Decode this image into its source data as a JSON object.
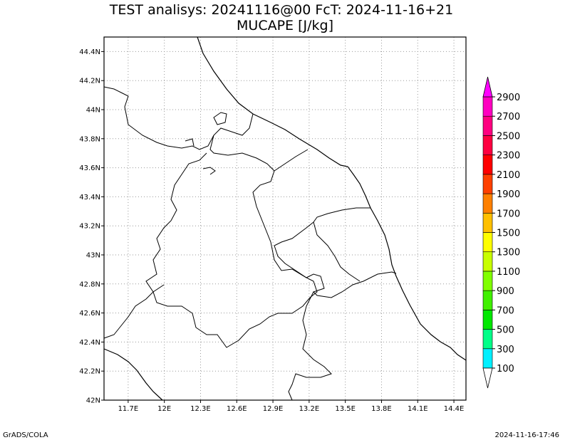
{
  "title": {
    "line1": "TEST analisys: 20241116@00 FcT: 2024-11-16+21",
    "line2": "MUCAPE [J/kg]"
  },
  "map": {
    "lon_range": [
      11.5,
      14.5
    ],
    "lat_range": [
      42.0,
      44.5
    ],
    "lat_ticks": [
      {
        "value": 42.0,
        "label": "42N"
      },
      {
        "value": 42.2,
        "label": "42.2N"
      },
      {
        "value": 42.4,
        "label": "42.4N"
      },
      {
        "value": 42.6,
        "label": "42.6N"
      },
      {
        "value": 42.8,
        "label": "42.8N"
      },
      {
        "value": 43.0,
        "label": "43N"
      },
      {
        "value": 43.2,
        "label": "43.2N"
      },
      {
        "value": 43.4,
        "label": "43.4N"
      },
      {
        "value": 43.6,
        "label": "43.6N"
      },
      {
        "value": 43.8,
        "label": "43.8N"
      },
      {
        "value": 44.0,
        "label": "44N"
      },
      {
        "value": 44.2,
        "label": "44.2N"
      },
      {
        "value": 44.4,
        "label": "44.4N"
      }
    ],
    "lon_ticks": [
      {
        "value": 11.7,
        "label": "11.7E"
      },
      {
        "value": 12.0,
        "label": "12E"
      },
      {
        "value": 12.3,
        "label": "12.3E"
      },
      {
        "value": 12.6,
        "label": "12.6E"
      },
      {
        "value": 12.9,
        "label": "12.9E"
      },
      {
        "value": 13.2,
        "label": "13.2E"
      },
      {
        "value": 13.5,
        "label": "13.5E"
      },
      {
        "value": 13.8,
        "label": "13.8E"
      },
      {
        "value": 14.1,
        "label": "14.1E"
      },
      {
        "value": 14.4,
        "label": "14.4E"
      }
    ]
  },
  "colorbar": {
    "labels": [
      "100",
      "300",
      "500",
      "700",
      "900",
      "1100",
      "1300",
      "1500",
      "1700",
      "1900",
      "2100",
      "2300",
      "2500",
      "2700",
      "2900"
    ],
    "colors": [
      "#00f0ff",
      "#00ff88",
      "#00e800",
      "#40f000",
      "#80ff00",
      "#c8ff00",
      "#ffff00",
      "#ffc000",
      "#ff8000",
      "#ff4000",
      "#ff0000",
      "#ff0040",
      "#ff0080",
      "#ff00c0"
    ],
    "over_color": "#ff00ff",
    "under_color": "#ffffff"
  },
  "footer": {
    "left": "GrADS/COLA",
    "right": "2024-11-16-17:46"
  }
}
